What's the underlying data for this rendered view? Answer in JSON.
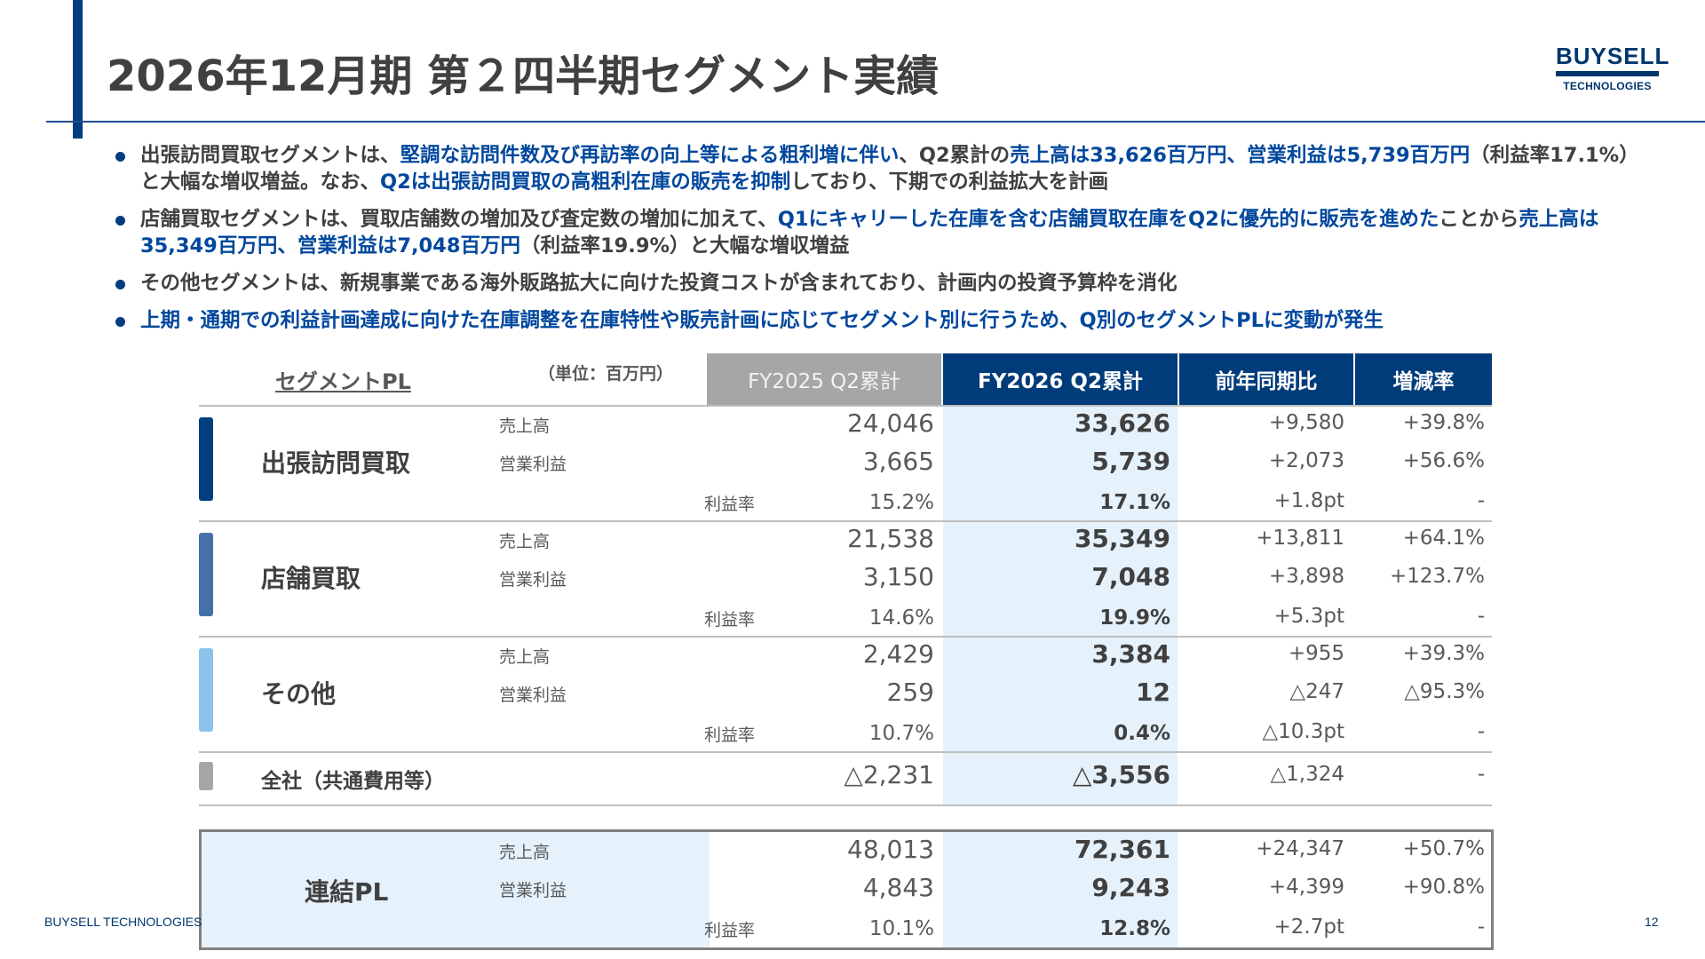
{
  "title": "2026年12月期 第２四半期セグメント実績",
  "logo": {
    "main": "BUYSELL",
    "sub": "TECHNOLOGIES"
  },
  "bullets": [
    {
      "segments": [
        {
          "t": "出張訪問買取セグメントは、",
          "hl": false
        },
        {
          "t": "堅調な訪問件数及び再訪率の向上等による粗利増に伴い",
          "hl": true
        },
        {
          "t": "、Q2累計の",
          "hl": false
        },
        {
          "t": "売上高は33,626百万円、営業利益は5,739百万円",
          "hl": true
        },
        {
          "t": "（利益率17.1%）と大幅な増収増益。なお、",
          "hl": false
        },
        {
          "t": "Q2は出張訪問買取の高粗利在庫の販売を抑制",
          "hl": true
        },
        {
          "t": "しており、下期での利益拡大を計画",
          "hl": false
        }
      ]
    },
    {
      "segments": [
        {
          "t": "店舗買取セグメントは、買取店舗数の増加及び査定数の増加に加えて、",
          "hl": false
        },
        {
          "t": "Q1にキャリーした在庫を含む店舗買取在庫をQ2に優先的に販売を進めた",
          "hl": true
        },
        {
          "t": "ことから",
          "hl": false
        },
        {
          "t": "売上高は35,349百万円、営業利益は7,048百万円",
          "hl": true
        },
        {
          "t": "（利益率19.9%）と大幅な増収増益",
          "hl": false
        }
      ]
    },
    {
      "segments": [
        {
          "t": "その他セグメントは、新規事業である海外販路拡大に向けた投資コストが含まれており、計画内の投資予算枠を消化",
          "hl": false
        }
      ]
    },
    {
      "segments": [
        {
          "t": "上期・通期での利益計画達成に向けた在庫調整を在庫特性や販売計画に応じてセグメント別に行うため、Q別のセグメントPLに変動が発生",
          "hl": true
        }
      ]
    }
  ],
  "table": {
    "segment_title": "セグメントPL",
    "unit": "（単位：百万円）",
    "headers": [
      "FY2025 Q2累計",
      "FY2026 Q2累計",
      "前年同期比",
      "増減率"
    ],
    "segments": [
      {
        "name": "出張訪問買取",
        "color": "#003e80",
        "rows": [
          {
            "label": "売上高",
            "fy25": "24,046",
            "fy26": "33,626",
            "yoy": "+9,580",
            "rate": "+39.8%"
          },
          {
            "label": "営業利益",
            "fy25": "3,665",
            "fy26": "5,739",
            "yoy": "+2,073",
            "rate": "+56.6%"
          },
          {
            "label": "利益率",
            "fy25": "15.2%",
            "fy26": "17.1%",
            "yoy": "+1.8pt",
            "rate": "-"
          }
        ]
      },
      {
        "name": "店舗買取",
        "color": "#4472a8",
        "rows": [
          {
            "label": "売上高",
            "fy25": "21,538",
            "fy26": "35,349",
            "yoy": "+13,811",
            "rate": "+64.1%"
          },
          {
            "label": "営業利益",
            "fy25": "3,150",
            "fy26": "7,048",
            "yoy": "+3,898",
            "rate": "+123.7%"
          },
          {
            "label": "利益率",
            "fy25": "14.6%",
            "fy26": "19.9%",
            "yoy": "+5.3pt",
            "rate": "-"
          }
        ]
      },
      {
        "name": "その他",
        "color": "#8dc3ea",
        "rows": [
          {
            "label": "売上高",
            "fy25": "2,429",
            "fy26": "3,384",
            "yoy": "+955",
            "rate": "+39.3%"
          },
          {
            "label": "営業利益",
            "fy25": "259",
            "fy26": "12",
            "yoy": "△247",
            "rate": "△95.3%"
          },
          {
            "label": "利益率",
            "fy25": "10.7%",
            "fy26": "0.4%",
            "yoy": "△10.3pt",
            "rate": "-"
          }
        ]
      }
    ],
    "corporate": {
      "name": "全社（共通費用等）",
      "color": "#a6a6a6",
      "fy25": "△2,231",
      "fy26": "△3,556",
      "yoy": "△1,324",
      "rate": "-"
    },
    "consolidated": {
      "name": "連結PL",
      "rows": [
        {
          "label": "売上高",
          "fy25": "48,013",
          "fy26": "72,361",
          "yoy": "+24,347",
          "rate": "+50.7%"
        },
        {
          "label": "営業利益",
          "fy25": "4,843",
          "fy26": "9,243",
          "yoy": "+4,399",
          "rate": "+90.8%"
        },
        {
          "label": "利益率",
          "fy25": "10.1%",
          "fy26": "12.8%",
          "yoy": "+2.7pt",
          "rate": "-"
        }
      ]
    }
  },
  "footer": "BUYSELL TECHNOLOGIES",
  "page_number": "12"
}
